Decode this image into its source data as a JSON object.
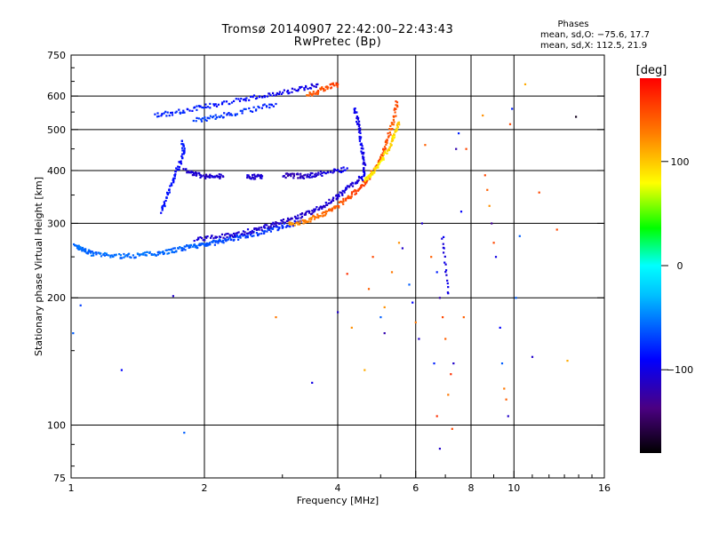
{
  "header": {
    "title": "Tromsø 20140907 22:42:00–22:43:43",
    "subtitle": "RwPretec (Bp)"
  },
  "phase_info": {
    "heading": "Phases",
    "line_o": "mean, sd,O: −75.6, 17.7",
    "line_x": "mean, sd,X: 112.5, 21.9"
  },
  "colorbar": {
    "label": "[deg]",
    "ticks": [
      {
        "value": 100,
        "label": "100"
      },
      {
        "value": 0,
        "label": "0"
      },
      {
        "value": -100,
        "label": "−100"
      }
    ],
    "range": [
      -180,
      180
    ]
  },
  "chart_data": {
    "type": "scatter",
    "xlabel": "Frequency [MHz]",
    "ylabel": "Stationary phase Virtual Height [km]",
    "xscale": "log",
    "yscale": "log",
    "xlim": [
      1,
      16
    ],
    "ylim": [
      75,
      750
    ],
    "xticks": [
      {
        "value": 1,
        "label": "1"
      },
      {
        "value": 2,
        "label": "2"
      },
      {
        "value": 4,
        "label": "4"
      },
      {
        "value": 6,
        "label": "6"
      },
      {
        "value": 8,
        "label": "8"
      },
      {
        "value": 10,
        "label": "10"
      },
      {
        "value": 16,
        "label": "16"
      }
    ],
    "yticks": [
      {
        "value": 75,
        "label": "75"
      },
      {
        "value": 100,
        "label": "100"
      },
      {
        "value": 200,
        "label": "200"
      },
      {
        "value": 300,
        "label": "300"
      },
      {
        "value": 400,
        "label": "400"
      },
      {
        "value": 500,
        "label": "500"
      },
      {
        "value": 600,
        "label": "600"
      },
      {
        "value": 750,
        "label": "750"
      }
    ],
    "grid_x": [
      2,
      4,
      6,
      8,
      10
    ],
    "grid_y": [
      100,
      200,
      300,
      400,
      500,
      600
    ],
    "traces": [
      {
        "points": [
          [
            1.02,
            265,
            -58
          ],
          [
            1.05,
            262,
            -55
          ],
          [
            1.08,
            258,
            -56
          ],
          [
            1.12,
            254,
            -57
          ],
          [
            1.2,
            252,
            -55
          ],
          [
            1.3,
            251,
            -56
          ],
          [
            1.4,
            252,
            -57
          ],
          [
            1.5,
            254,
            -56
          ],
          [
            1.6,
            256,
            -58
          ],
          [
            1.7,
            259,
            -57
          ],
          [
            1.8,
            262,
            -59
          ],
          [
            1.9,
            265,
            -60
          ],
          [
            2.0,
            268,
            -62
          ],
          [
            2.1,
            270,
            -64
          ],
          [
            2.2,
            273,
            -66
          ],
          [
            2.35,
            277,
            -68
          ],
          [
            2.5,
            281,
            -70
          ],
          [
            2.7,
            286,
            -72
          ],
          [
            2.9,
            292,
            -75
          ],
          [
            3.1,
            298,
            -80
          ],
          [
            3.3,
            303,
            -85
          ]
        ],
        "dense": true
      },
      {
        "points": [
          [
            3.1,
            298,
            120
          ],
          [
            3.3,
            302,
            125
          ],
          [
            3.5,
            308,
            130
          ],
          [
            3.7,
            316,
            135
          ],
          [
            3.9,
            325,
            140
          ],
          [
            4.1,
            336,
            145
          ],
          [
            4.3,
            350,
            150
          ],
          [
            4.5,
            365,
            155
          ],
          [
            4.7,
            385,
            150
          ],
          [
            4.9,
            410,
            140
          ],
          [
            5.05,
            440,
            150
          ],
          [
            5.2,
            480,
            145
          ],
          [
            5.35,
            530,
            140
          ],
          [
            5.45,
            580,
            150
          ]
        ],
        "dense": true
      },
      {
        "points": [
          [
            4.6,
            380,
            80
          ],
          [
            4.8,
            395,
            90
          ],
          [
            5.0,
            420,
            85
          ],
          [
            5.2,
            450,
            95
          ],
          [
            5.35,
            480,
            90
          ],
          [
            5.5,
            520,
            100
          ]
        ],
        "dense": true
      },
      {
        "points": [
          [
            1.9,
            275,
            -105
          ],
          [
            2.1,
            278,
            -108
          ],
          [
            2.3,
            282,
            -110
          ],
          [
            2.5,
            287,
            -106
          ],
          [
            2.7,
            292,
            -108
          ],
          [
            2.9,
            300,
            -110
          ],
          [
            3.1,
            305,
            -112
          ],
          [
            3.3,
            312,
            -108
          ],
          [
            3.5,
            320,
            -110
          ],
          [
            3.7,
            330,
            -106
          ],
          [
            3.9,
            342,
            -108
          ],
          [
            4.1,
            355,
            -104
          ],
          [
            4.3,
            370,
            -106
          ],
          [
            4.5,
            385,
            -104
          ]
        ],
        "dense": true
      },
      {
        "points": [
          [
            1.6,
            320,
            -85
          ],
          [
            1.65,
            350,
            -88
          ],
          [
            1.7,
            380,
            -86
          ],
          [
            1.75,
            410,
            -90
          ],
          [
            1.8,
            440,
            -88
          ],
          [
            1.78,
            470,
            -85
          ]
        ],
        "dense": true
      },
      {
        "points": [
          [
            1.8,
            400,
            -105
          ],
          [
            1.9,
            392,
            -108
          ],
          [
            2.0,
            388,
            -110
          ],
          [
            2.1,
            387,
            -106
          ],
          [
            2.2,
            388,
            -108
          ]
        ],
        "dense": true
      },
      {
        "points": [
          [
            2.5,
            388,
            -105
          ],
          [
            2.6,
            386,
            -108
          ],
          [
            2.7,
            388,
            -104
          ]
        ],
        "dense": true
      },
      {
        "points": [
          [
            3.0,
            390,
            -115
          ],
          [
            3.2,
            389,
            -120
          ],
          [
            3.4,
            388,
            -110
          ],
          [
            3.6,
            392,
            -105
          ],
          [
            3.9,
            398,
            -100
          ],
          [
            4.2,
            405,
            -95
          ]
        ],
        "dense": true
      },
      {
        "points": [
          [
            1.55,
            540,
            -78
          ],
          [
            1.7,
            548,
            -80
          ],
          [
            1.9,
            560,
            -82
          ],
          [
            2.1,
            572,
            -85
          ],
          [
            2.4,
            588,
            -88
          ],
          [
            2.7,
            600,
            -92
          ],
          [
            3.0,
            612,
            -95
          ],
          [
            3.3,
            625,
            -100
          ],
          [
            3.6,
            640,
            -102
          ]
        ],
        "dense": true
      },
      {
        "points": [
          [
            1.9,
            525,
            -70
          ],
          [
            2.1,
            535,
            -72
          ],
          [
            2.3,
            545,
            -75
          ],
          [
            2.6,
            560,
            -78
          ],
          [
            2.9,
            575,
            -80
          ]
        ],
        "dense": true
      },
      {
        "points": [
          [
            3.4,
            600,
            140
          ],
          [
            3.6,
            615,
            145
          ],
          [
            3.8,
            630,
            150
          ],
          [
            4.0,
            640,
            155
          ]
        ],
        "dense": true
      },
      {
        "points": [
          [
            4.35,
            560,
            -95
          ],
          [
            4.45,
            520,
            -100
          ],
          [
            4.5,
            480,
            -98
          ],
          [
            4.55,
            440,
            -96
          ],
          [
            4.6,
            410,
            -100
          ],
          [
            4.55,
            380,
            -98
          ]
        ],
        "dense": true
      },
      {
        "points": [
          [
            6.9,
            280,
            -100
          ],
          [
            6.95,
            260,
            -98
          ],
          [
            7.0,
            240,
            -102
          ],
          [
            7.05,
            220,
            -100
          ],
          [
            7.1,
            205,
            -98
          ]
        ],
        "dense": false
      }
    ],
    "scatter": [
      [
        1.01,
        165,
        -60
      ],
      [
        1.05,
        192,
        -70
      ],
      [
        1.3,
        135,
        -90
      ],
      [
        1.7,
        202,
        -110
      ],
      [
        1.8,
        96,
        -60
      ],
      [
        2.9,
        180,
        130
      ],
      [
        3.5,
        126,
        -100
      ],
      [
        4.0,
        185,
        -110
      ],
      [
        4.2,
        228,
        160
      ],
      [
        4.3,
        170,
        120
      ],
      [
        4.6,
        135,
        110
      ],
      [
        4.7,
        210,
        140
      ],
      [
        4.8,
        250,
        150
      ],
      [
        5.0,
        180,
        -60
      ],
      [
        5.1,
        165,
        -120
      ],
      [
        5.1,
        190,
        120
      ],
      [
        5.3,
        230,
        130
      ],
      [
        5.5,
        270,
        120
      ],
      [
        5.6,
        262,
        -110
      ],
      [
        5.8,
        215,
        -60
      ],
      [
        5.9,
        195,
        -90
      ],
      [
        6.0,
        175,
        130
      ],
      [
        6.1,
        160,
        -110
      ],
      [
        6.3,
        460,
        140
      ],
      [
        6.5,
        250,
        140
      ],
      [
        6.6,
        140,
        -80
      ],
      [
        6.7,
        105,
        160
      ],
      [
        6.8,
        88,
        -110
      ],
      [
        6.9,
        180,
        150
      ],
      [
        7.0,
        160,
        140
      ],
      [
        7.1,
        118,
        130
      ],
      [
        7.2,
        132,
        160
      ],
      [
        7.25,
        98,
        150
      ],
      [
        7.3,
        140,
        -110
      ],
      [
        7.4,
        450,
        -120
      ],
      [
        7.5,
        490,
        -80
      ],
      [
        7.6,
        320,
        -90
      ],
      [
        7.7,
        180,
        140
      ],
      [
        7.8,
        450,
        150
      ],
      [
        8.5,
        540,
        120
      ],
      [
        8.6,
        390,
        150
      ],
      [
        8.7,
        360,
        140
      ],
      [
        8.8,
        330,
        120
      ],
      [
        8.9,
        300,
        -130
      ],
      [
        9.0,
        270,
        150
      ],
      [
        9.1,
        250,
        -100
      ],
      [
        9.3,
        170,
        -90
      ],
      [
        9.4,
        140,
        -60
      ],
      [
        9.5,
        122,
        130
      ],
      [
        9.6,
        115,
        140
      ],
      [
        9.7,
        105,
        -110
      ],
      [
        9.8,
        515,
        150
      ],
      [
        9.9,
        560,
        -80
      ],
      [
        10.1,
        200,
        -60
      ],
      [
        10.3,
        280,
        -60
      ],
      [
        10.6,
        640,
        110
      ],
      [
        11.0,
        145,
        -110
      ],
      [
        11.4,
        355,
        150
      ],
      [
        12.5,
        290,
        150
      ],
      [
        13.2,
        142,
        110
      ],
      [
        13.8,
        536,
        -170
      ],
      [
        6.2,
        300,
        -110
      ],
      [
        6.7,
        230,
        -80
      ],
      [
        6.8,
        200,
        -120
      ]
    ]
  }
}
